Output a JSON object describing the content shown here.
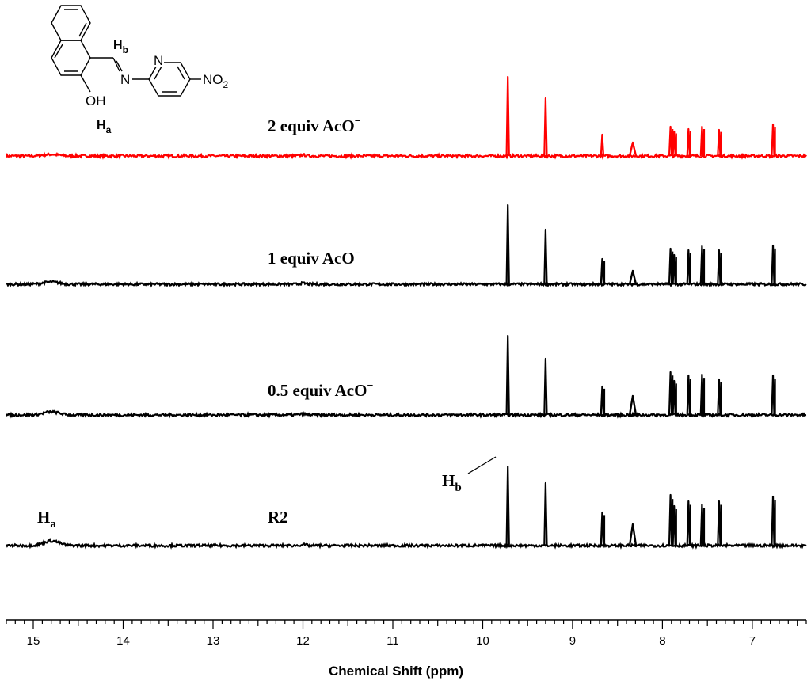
{
  "chart_data": {
    "type": "line",
    "x_axis": {
      "label": "Chemical Shift (ppm)",
      "range": [
        15.3,
        6.4
      ],
      "reversed": true,
      "major_ticks": [
        15,
        14,
        13,
        12,
        11,
        10,
        9,
        8,
        7
      ],
      "minor_step": 0.1
    },
    "grid": false,
    "legend": "none",
    "series": [
      {
        "name": "2 equiv AcO⁻",
        "label_sup": "−",
        "label_base": "2 equiv AcO",
        "color": "#ff0000",
        "broad_Ha_height": 2,
        "peaks": [
          {
            "ppm": 9.72,
            "height": 100
          },
          {
            "ppm": 9.3,
            "height": 73
          },
          {
            "ppm": 8.67,
            "height": 27
          },
          {
            "ppm": 8.33,
            "height": 17
          },
          {
            "ppm": 7.91,
            "height": 37
          },
          {
            "ppm": 7.87,
            "height": 31
          },
          {
            "ppm": 7.71,
            "height": 34
          },
          {
            "ppm": 7.56,
            "height": 37
          },
          {
            "ppm": 7.37,
            "height": 33
          },
          {
            "ppm": 6.77,
            "height": 40
          }
        ]
      },
      {
        "name": "1 equiv AcO⁻",
        "label_sup": "−",
        "label_base": "1 equiv AcO",
        "color": "#000000",
        "broad_Ha_height": 3,
        "peaks": [
          {
            "ppm": 9.72,
            "height": 100
          },
          {
            "ppm": 9.3,
            "height": 69
          },
          {
            "ppm": 8.67,
            "height": 32
          },
          {
            "ppm": 8.33,
            "height": 17
          },
          {
            "ppm": 7.91,
            "height": 45
          },
          {
            "ppm": 7.87,
            "height": 37
          },
          {
            "ppm": 7.71,
            "height": 43
          },
          {
            "ppm": 7.56,
            "height": 48
          },
          {
            "ppm": 7.37,
            "height": 43
          },
          {
            "ppm": 6.77,
            "height": 49
          }
        ]
      },
      {
        "name": "0.5 equiv AcO⁻",
        "label_sup": "−",
        "label_base": "0.5 equiv AcO",
        "color": "#000000",
        "broad_Ha_height": 4,
        "peaks": [
          {
            "ppm": 9.72,
            "height": 100
          },
          {
            "ppm": 9.3,
            "height": 71
          },
          {
            "ppm": 8.67,
            "height": 36
          },
          {
            "ppm": 8.33,
            "height": 24
          },
          {
            "ppm": 7.91,
            "height": 54
          },
          {
            "ppm": 7.87,
            "height": 43
          },
          {
            "ppm": 7.71,
            "height": 50
          },
          {
            "ppm": 7.56,
            "height": 51
          },
          {
            "ppm": 7.37,
            "height": 45
          },
          {
            "ppm": 6.77,
            "height": 50
          }
        ]
      },
      {
        "name": "R2",
        "label_sup": "",
        "label_base": "R2",
        "color": "#000000",
        "broad_Ha_height": 6,
        "peaks": [
          {
            "ppm": 9.72,
            "height": 100
          },
          {
            "ppm": 9.3,
            "height": 79
          },
          {
            "ppm": 8.67,
            "height": 42
          },
          {
            "ppm": 8.33,
            "height": 27
          },
          {
            "ppm": 7.91,
            "height": 64
          },
          {
            "ppm": 7.87,
            "height": 50
          },
          {
            "ppm": 7.71,
            "height": 56
          },
          {
            "ppm": 7.56,
            "height": 52
          },
          {
            "ppm": 7.37,
            "height": 56
          },
          {
            "ppm": 6.77,
            "height": 62
          }
        ]
      }
    ],
    "annotations": {
      "Ha": {
        "base": "H",
        "sub": "a",
        "ppm": 14.8
      },
      "Hb": {
        "base": "H",
        "sub": "b",
        "ppm": 9.72
      }
    }
  },
  "structure": {
    "hb_label": {
      "base": "H",
      "sub": "b"
    },
    "ha_label": {
      "base": "H",
      "sub": "a"
    },
    "oh": "OH",
    "n_imine": "N",
    "n_pyridine": "N",
    "nitro_base": "NO",
    "nitro_sub": "2"
  }
}
